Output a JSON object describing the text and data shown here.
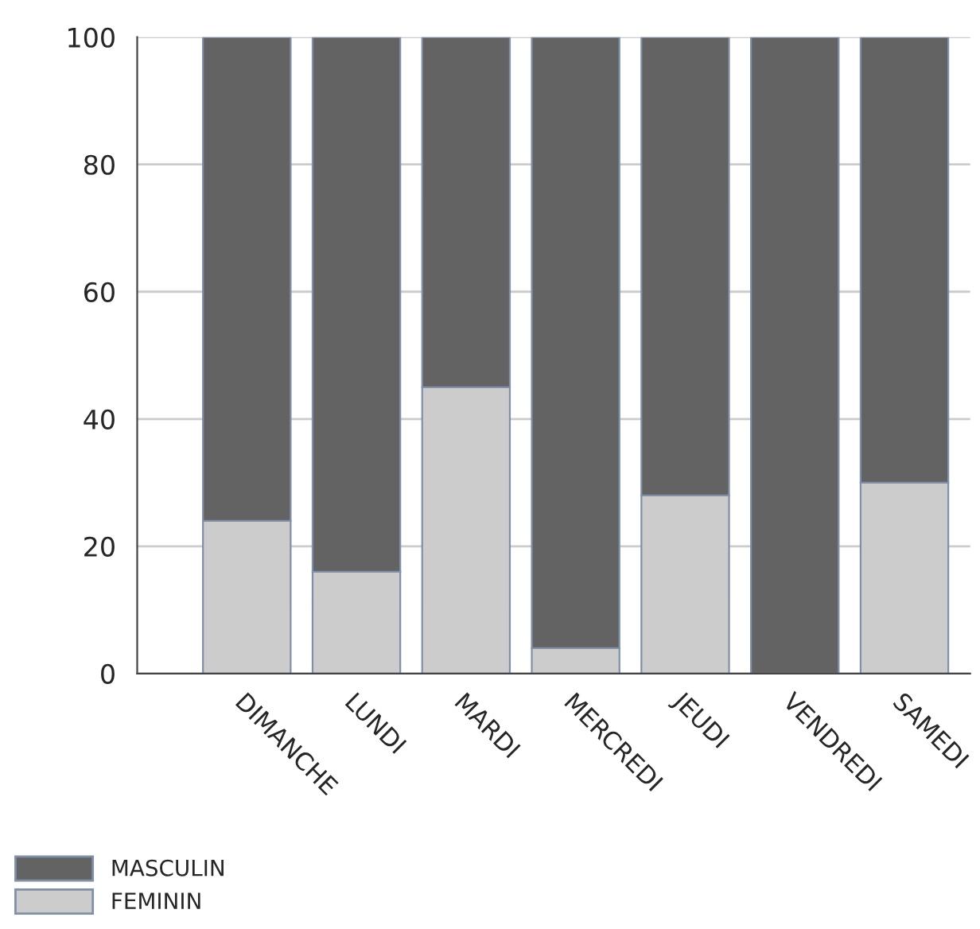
{
  "chart_data": {
    "type": "bar",
    "stacked": true,
    "categories": [
      "DIMANCHE",
      "LUNDI",
      "MARDI",
      "MERCREDI",
      "JEUDI",
      "VENDREDI",
      "SAMEDI"
    ],
    "series": [
      {
        "name": "FEMININ",
        "color": "#cccccc",
        "values": [
          24,
          16,
          45,
          4,
          28,
          0,
          30
        ]
      },
      {
        "name": "MASCULIN",
        "color": "#636363",
        "values": [
          76,
          84,
          55,
          96,
          72,
          100,
          70
        ]
      }
    ],
    "ylim": [
      0,
      100
    ],
    "yticks": [
      0,
      20,
      40,
      60,
      80,
      100
    ],
    "grid": "y",
    "legend": "bottom left"
  }
}
